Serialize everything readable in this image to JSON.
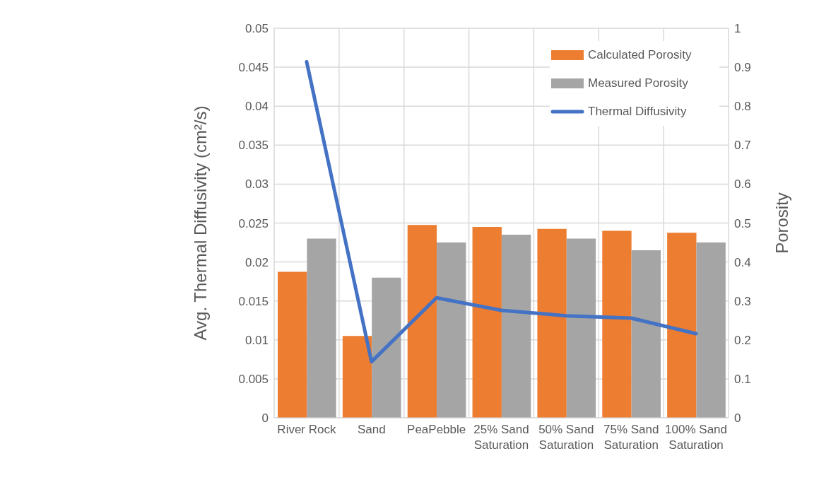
{
  "chart_data": {
    "type": "bar",
    "ylabel": "Avg. Thermal Diffusivity (cm²/s)",
    "y2label": "Porosity",
    "categories": [
      "River Rock",
      "Sand",
      "PeaPebble",
      "25% Sand Saturation",
      "50% Sand Saturation",
      "75% Sand Saturation",
      "100% Sand Saturation"
    ],
    "series": [
      {
        "name": "Calculated Porosity",
        "axis": "y2",
        "color": "#ed7d31",
        "values": [
          0.375,
          0.21,
          0.495,
          0.49,
          0.485,
          0.48,
          0.475
        ]
      },
      {
        "name": "Measured Porosity",
        "axis": "y2",
        "color": "#a5a5a5",
        "values": [
          0.46,
          0.36,
          0.45,
          0.47,
          0.46,
          0.43,
          0.45
        ]
      },
      {
        "name": "Thermal Diffusivity",
        "type": "line",
        "axis": "y",
        "color": "#4472c4",
        "values": [
          0.0457,
          0.0072,
          0.0154,
          0.0138,
          0.0131,
          0.0128,
          0.0108
        ]
      }
    ],
    "ylim": [
      0,
      0.05
    ],
    "yticks": [
      0,
      0.005,
      0.01,
      0.015,
      0.02,
      0.025,
      0.03,
      0.035,
      0.04,
      0.045,
      0.05
    ],
    "y2lim": [
      0,
      1
    ],
    "y2ticks": [
      0,
      0.1,
      0.2,
      0.3,
      0.4,
      0.5,
      0.6,
      0.7,
      0.8,
      0.9,
      1
    ],
    "grid": true,
    "legend": "top right",
    "marker": "none",
    "line_style": "solid"
  }
}
